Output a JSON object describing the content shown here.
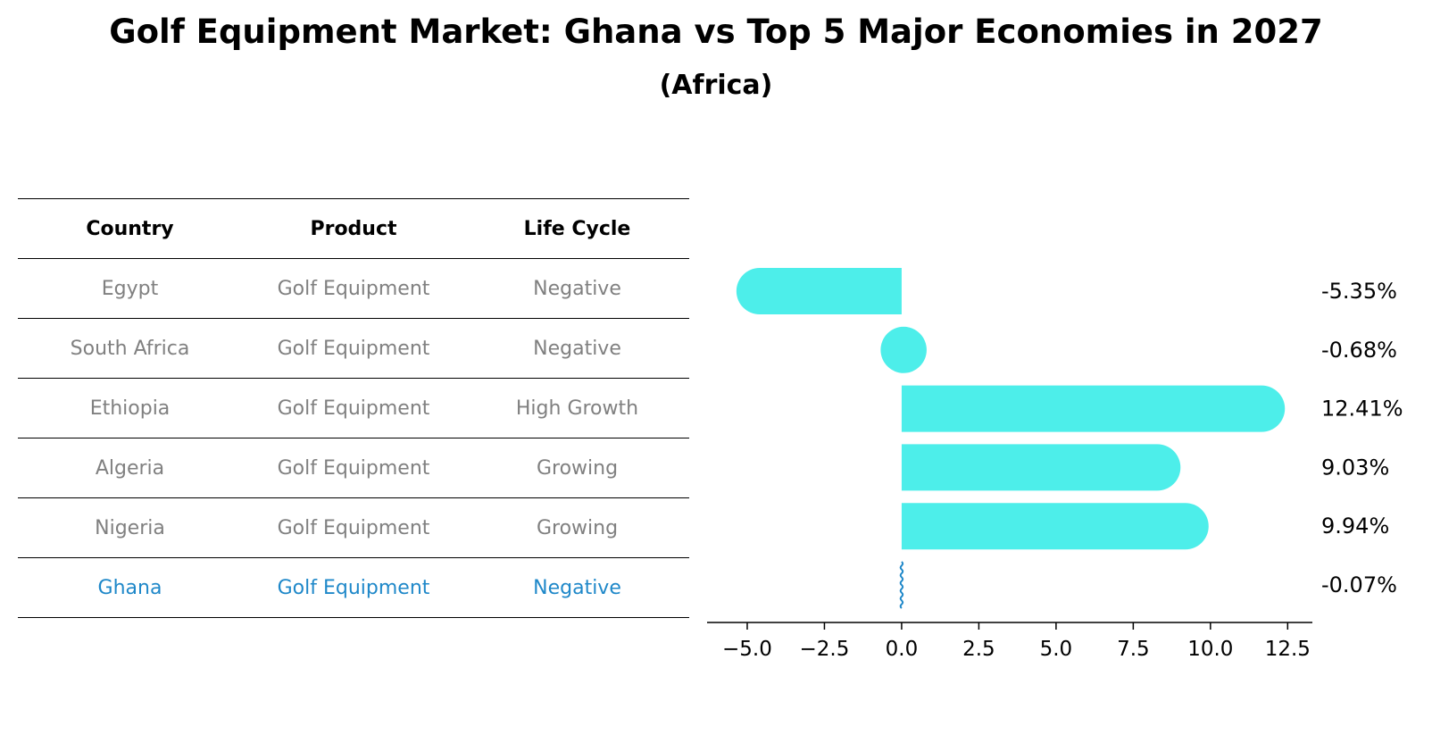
{
  "title": "Golf Equipment Market: Ghana vs Top 5 Major Economies in 2027",
  "subtitle": "(Africa)",
  "table": {
    "headers": [
      "Country",
      "Product",
      "Life Cycle"
    ],
    "rows": [
      {
        "country": "Egypt",
        "product": "Golf Equipment",
        "life_cycle": "Negative"
      },
      {
        "country": "South Africa",
        "product": "Golf Equipment",
        "life_cycle": "Negative"
      },
      {
        "country": "Ethiopia",
        "product": "Golf Equipment",
        "life_cycle": "High Growth"
      },
      {
        "country": "Algeria",
        "product": "Golf Equipment",
        "life_cycle": "Growing"
      },
      {
        "country": "Nigeria",
        "product": "Golf Equipment",
        "life_cycle": "Growing"
      },
      {
        "country": "Ghana",
        "product": "Golf Equipment",
        "life_cycle": "Negative"
      }
    ]
  },
  "chart_data": {
    "type": "bar",
    "orientation": "horizontal",
    "categories": [
      "Egypt",
      "South Africa",
      "Ethiopia",
      "Algeria",
      "Nigeria",
      "Ghana"
    ],
    "values": [
      -5.35,
      -0.68,
      12.41,
      9.03,
      9.94,
      -0.07
    ],
    "value_labels": [
      "-5.35%",
      "-0.68%",
      "12.41%",
      "9.03%",
      "9.94%",
      "-0.07%"
    ],
    "highlight": "Ghana",
    "xlim": [
      -6.3,
      13.3
    ],
    "xticks": [
      -5.0,
      -2.5,
      0.0,
      2.5,
      5.0,
      7.5,
      10.0,
      12.5
    ],
    "xtick_labels": [
      "−5.0",
      "−2.5",
      "0.0",
      "2.5",
      "5.0",
      "7.5",
      "10.0",
      "12.5"
    ],
    "xlabel": "",
    "ylabel": "",
    "bar_color": "#4deeea",
    "highlight_color": "#1f88c9"
  }
}
